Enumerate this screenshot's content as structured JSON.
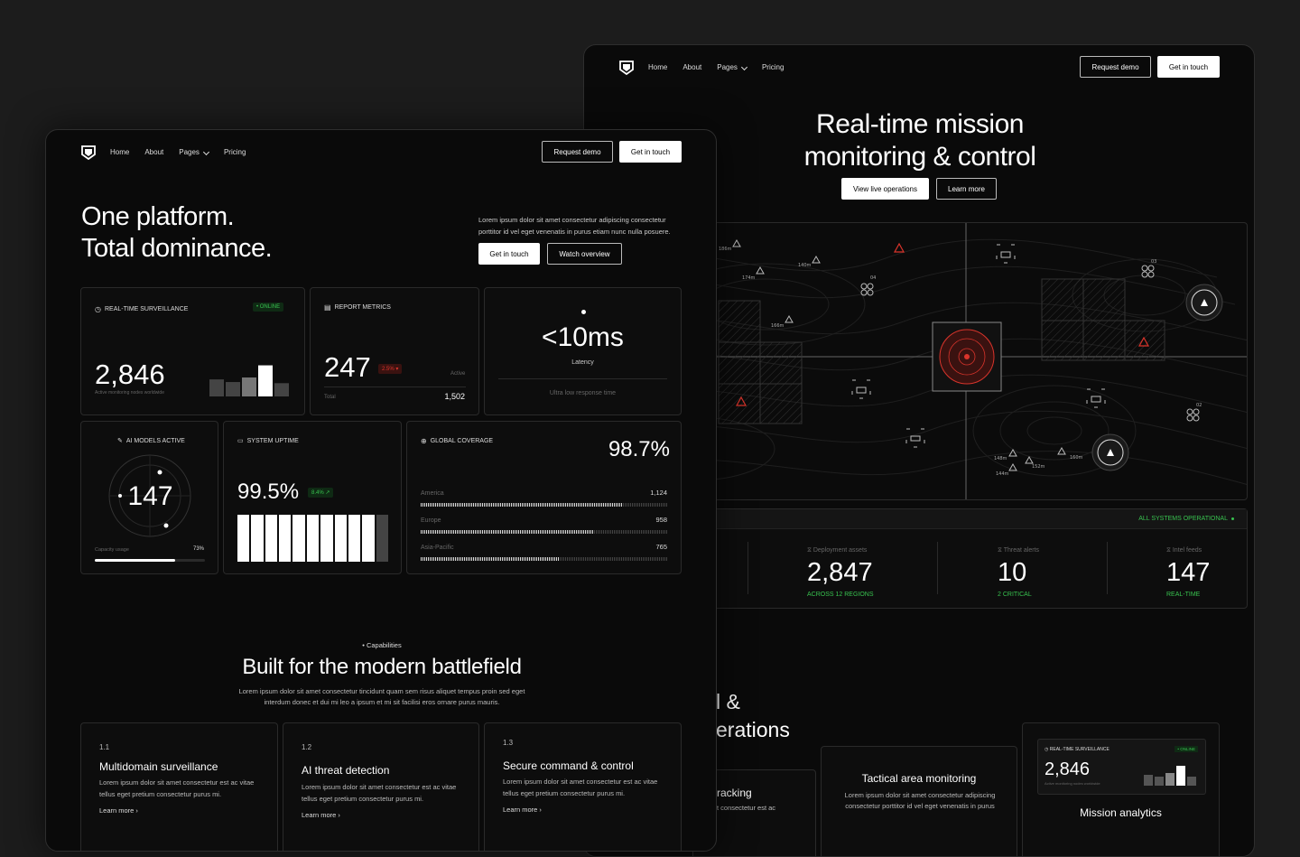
{
  "nav": {
    "home": "Home",
    "about": "About",
    "pages": "Pages",
    "pricing": "Pricing",
    "request_demo": "Request demo",
    "get_in_touch": "Get in touch"
  },
  "back": {
    "hero_line1": "Real-time mission",
    "hero_line2": "monitoring & control",
    "view_live": "View live operations",
    "learn_more": "Learn more",
    "map_labels": {
      "a": "186m",
      "b": "174m",
      "c": "140m",
      "d": "166m",
      "e": "04",
      "f": "03",
      "g": "02",
      "h": "148m",
      "i": "144m",
      "j": "152m",
      "k": "160m"
    },
    "status": "ALL SYSTEMS OPERATIONAL",
    "stats": [
      {
        "label": "Deployment assets",
        "value": "2,847",
        "sub": "ACROSS 12 REGIONS"
      },
      {
        "label": "Threat alerts",
        "value": "10",
        "sub": "2 CRITICAL"
      },
      {
        "label": "Intel feeds",
        "value": "147",
        "sub": "REAL-TIME"
      }
    ],
    "section_line1": "l &",
    "section_line2": "erations",
    "f_tracking_title": "racking",
    "f_tracking_desc": "t consectetur est ac",
    "f_tactical_title": "Tactical area monitoring",
    "f_tactical_desc": "Lorem ipsum dolor sit amet consectetur adipiscing consectetur porttitor id vel eget venenatis in purus",
    "mini_label": "REAL-TIME SURVEILLANCE",
    "mini_badge": "• ONLINE",
    "mini_value": "2,846",
    "mini_sub": "Active monitoring nodes worldwide",
    "mission_title": "Mission analytics"
  },
  "front": {
    "hero_line1": "One platform.",
    "hero_line2": "Total dominance.",
    "hero_desc_1": "Lorem ipsum dolor sit amet consectetur adipiscing consectetur",
    "hero_desc_2": "porttitor id vel eget venenatis in purus etiam nunc nulla posuere.",
    "get_in_touch": "Get in touch",
    "watch_overview": "Watch overview",
    "surv": {
      "label": "REAL-TIME SURVEILLANCE",
      "badge": "• ONLINE",
      "value": "2,846",
      "sub": "Active monitoring nodes worldwide",
      "bars": [
        0.45,
        0.38,
        0.5,
        0.82,
        0.35
      ]
    },
    "report": {
      "label": "REPORT METRICS",
      "value": "247",
      "badge": "2.5% ▾",
      "active": "Active",
      "total_label": "Total",
      "total": "1,502"
    },
    "latency": {
      "value": "<10ms",
      "label": "Latency",
      "sub": "Ultra low response time"
    },
    "ai": {
      "label": "AI MODELS ACTIVE",
      "value": "147",
      "cap_label": "Capacity usage",
      "cap_value": "73%",
      "cap_fraction": 0.73
    },
    "uptime": {
      "label": "SYSTEM UPTIME",
      "value": "99.5%",
      "badge": "8.4% ↗",
      "segments": 11,
      "filled": 10
    },
    "coverage": {
      "label": "GLOBAL COVERAGE",
      "value": "98.7%",
      "rows": [
        {
          "name": "America",
          "value": "1,124",
          "fraction": 0.82
        },
        {
          "name": "Europe",
          "value": "958",
          "fraction": 0.7
        },
        {
          "name": "Asia-Pacific",
          "value": "765",
          "fraction": 0.56
        }
      ]
    },
    "cap_tag": "• Capabilities",
    "section_title": "Built for the modern battlefield",
    "section_desc_1": "Lorem ipsum dolor sit amet consectetur tincidunt quam sem risus aliquet tempus proin sed eget",
    "section_desc_2": "interdum donec et dui mi leo a ipsum et mi sit facilisi eros ornare purus mauris.",
    "features": [
      {
        "num": "1.1",
        "title": "Multidomain surveillance",
        "desc": "Lorem ipsum dolor sit amet consectetur est ac vitae tellus eget pretium consectetur purus mi.",
        "link": "Learn more ›"
      },
      {
        "num": "1.2",
        "title": "AI threat detection",
        "desc": "Lorem ipsum dolor sit amet consectetur est ac vitae tellus eget pretium consectetur purus mi.",
        "link": "Learn more ›"
      },
      {
        "num": "1.3",
        "title": "Secure command & control",
        "desc": "Lorem ipsum dolor sit amet consectetur est ac vitae tellus eget pretium consectetur purus mi.",
        "link": "Learn more ›"
      }
    ]
  },
  "colors": {
    "accent_green": "#38c24f",
    "alert_red": "#d9342b",
    "bg": "#0a0a0a",
    "page_bg": "#1c1c1c"
  }
}
